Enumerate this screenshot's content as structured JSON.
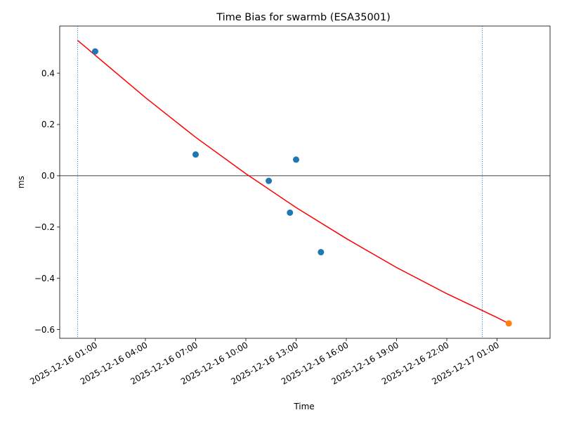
{
  "chart_data": {
    "type": "scatter",
    "title": "Time Bias for swarmb (ESA35001)",
    "xlabel": "Time",
    "ylabel": "ms",
    "x_tick_labels": [
      "2025-12-16 01:00",
      "2025-12-16 04:00",
      "2025-12-16 07:00",
      "2025-12-16 10:00",
      "2025-12-16 13:00",
      "2025-12-16 16:00",
      "2025-12-16 19:00",
      "2025-12-16 22:00",
      "2025-12-17 01:00"
    ],
    "y_tick_labels": [
      "−0.6",
      "−0.4",
      "−0.2",
      "0.0",
      "0.2",
      "0.4"
    ],
    "x_ticks": [
      "2025-12-16 01:00",
      "2025-12-16 04:00",
      "2025-12-16 07:00",
      "2025-12-16 10:00",
      "2025-12-16 13:00",
      "2025-12-16 16:00",
      "2025-12-16 19:00",
      "2025-12-16 22:00",
      "2025-12-17 01:00"
    ],
    "y_ticks": [
      -0.6,
      -0.4,
      -0.2,
      0.0,
      0.2,
      0.4
    ],
    "xlim": [
      "2025-12-15 22:53",
      "2025-12-17 04:10"
    ],
    "ylim": [
      -0.634,
      0.584
    ],
    "grid": false,
    "series": [
      {
        "color": "#1f77b4",
        "points": [
          {
            "x": "2025-12-16 01:00",
            "y": 0.485
          },
          {
            "x": "2025-12-16 07:00",
            "y": 0.083
          },
          {
            "x": "2025-12-16 11:22",
            "y": -0.02
          },
          {
            "x": "2025-12-16 12:38",
            "y": -0.144
          },
          {
            "x": "2025-12-16 13:00",
            "y": 0.063
          },
          {
            "x": "2025-12-16 14:29",
            "y": -0.298
          }
        ]
      },
      {
        "color": "#ff7f0e",
        "points": [
          {
            "x": "2025-12-17 01:42",
            "y": -0.576
          }
        ]
      }
    ],
    "fit_line": {
      "color": "#ff0000",
      "points": [
        {
          "x": "2025-12-15 23:57",
          "y": 0.528
        },
        {
          "x": "2025-12-16 04:00",
          "y": 0.305
        },
        {
          "x": "2025-12-16 07:00",
          "y": 0.15
        },
        {
          "x": "2025-12-16 10:00",
          "y": 0.008
        },
        {
          "x": "2025-12-16 13:00",
          "y": -0.124
        },
        {
          "x": "2025-12-16 16:00",
          "y": -0.245
        },
        {
          "x": "2025-12-16 19:00",
          "y": -0.358
        },
        {
          "x": "2025-12-16 22:00",
          "y": -0.46
        },
        {
          "x": "2025-12-17 01:00",
          "y": -0.553
        },
        {
          "x": "2025-12-17 01:42",
          "y": -0.576
        }
      ]
    },
    "vertical_lines": [
      {
        "x": "2025-12-15 23:57",
        "color": "#1f77b4",
        "style": "dotted"
      },
      {
        "x": "2025-12-17 00:07",
        "color": "#1f77b4",
        "style": "dotted"
      }
    ],
    "horizontal_lines": [
      {
        "y": 0.0,
        "color": "#000000",
        "style": "solid"
      }
    ]
  }
}
